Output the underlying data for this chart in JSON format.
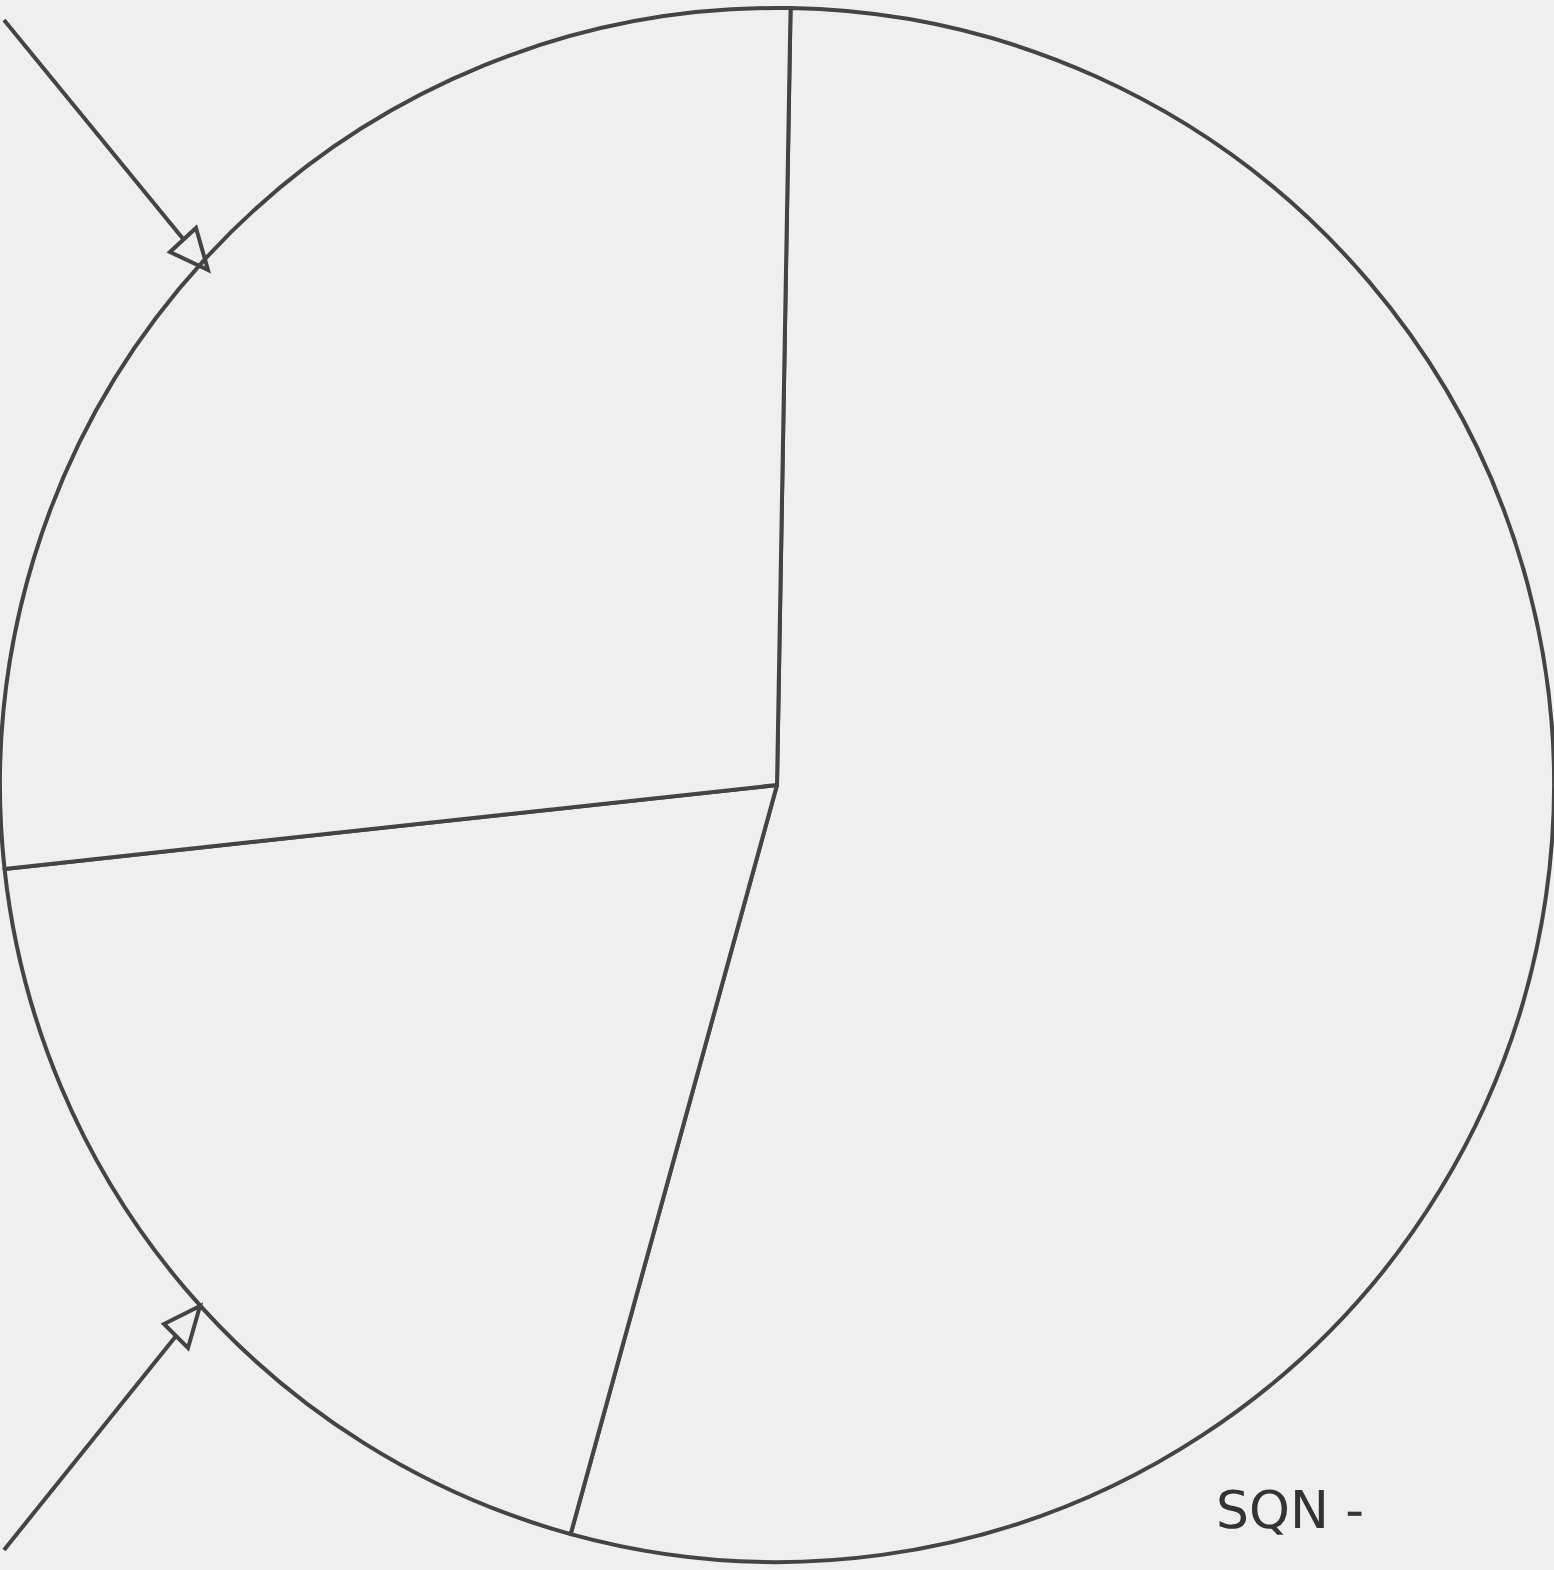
{
  "chart_data": {
    "type": "pie",
    "categories": [
      null,
      null,
      null
    ],
    "values": [
      54,
      19,
      27
    ],
    "colors": [
      "#efefef",
      "#efefef",
      "#efefef"
    ],
    "annotations": [
      "SQN -"
    ]
  }
}
